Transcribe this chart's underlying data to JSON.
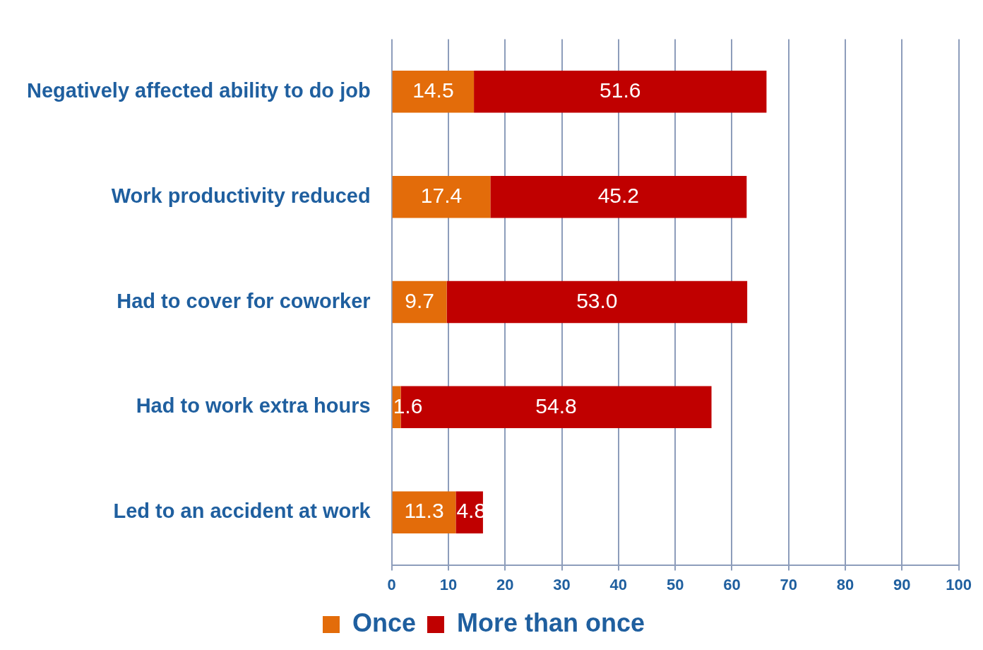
{
  "chart_data": {
    "type": "bar",
    "orientation": "horizontal",
    "stacked": true,
    "categories": [
      "Negatively affected ability to do job",
      "Work productivity reduced",
      "Had to cover for coworker",
      "Had to work extra hours",
      "Led to an accident at work"
    ],
    "series": [
      {
        "name": "Once",
        "color": "#e36c0a",
        "values": [
          14.5,
          17.4,
          9.7,
          1.6,
          11.3
        ],
        "value_labels": [
          "14.5",
          "17.4",
          "9.7",
          "1.6",
          "11.3"
        ]
      },
      {
        "name": "More than once",
        "color": "#c00000",
        "values": [
          51.6,
          45.2,
          53.0,
          54.8,
          4.8
        ],
        "value_labels": [
          "51.6",
          "45.2",
          "53.0",
          "54.8",
          "4.8"
        ]
      }
    ],
    "xlim": [
      0,
      100
    ],
    "xticks": [
      0,
      10,
      20,
      30,
      40,
      50,
      60,
      70,
      80,
      90,
      100
    ],
    "grid": "x",
    "legend": "bottom"
  }
}
